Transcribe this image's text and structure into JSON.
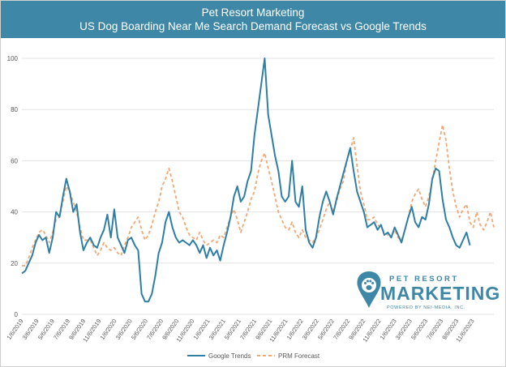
{
  "header": {
    "title_line1": "Pet Resort Marketing",
    "title_line2": "US Dog Boarding Near Me Search Demand Forecast vs Google Trends"
  },
  "logo": {
    "top_text": "PET RESORT",
    "main_text": "MARKETING",
    "sub_text": "POWERED BY NEI-MEDIA, INC."
  },
  "colors": {
    "header_bg": "#3e87a6",
    "trends": "#2e7fa5",
    "forecast": "#f2a775",
    "grid": "#e3e3e3"
  },
  "chart_data": {
    "type": "line",
    "title": "US Dog Boarding Near Me Search Demand Forecast vs Google Trends",
    "ylim": [
      0,
      100
    ],
    "yticks": [
      0,
      20,
      40,
      60,
      80,
      100
    ],
    "xlim_month_index": [
      0,
      58
    ],
    "x_tick_labels": [
      "1/6/2019",
      "3/6/2019",
      "5/6/2019",
      "7/6/2019",
      "9/6/2019",
      "11/6/2019",
      "1/6/2020",
      "3/6/2020",
      "5/6/2020",
      "7/6/2020",
      "9/6/2020",
      "11/6/2020",
      "1/6/2021",
      "3/6/2021",
      "5/6/2021",
      "7/6/2021",
      "9/6/2021",
      "11/6/2021",
      "1/6/2022",
      "3/6/2022",
      "5/6/2022",
      "7/6/2022",
      "9/6/2022",
      "11/6/2022",
      "1/6/2023",
      "3/6/2023",
      "5/6/2023",
      "7/6/2023",
      "9/6/2023",
      "11/6/2023"
    ],
    "grid": true,
    "legend_position": "bottom",
    "series": [
      {
        "name": "Google Trends",
        "style": "solid",
        "points": [
          [
            0,
            16
          ],
          [
            0.5,
            17
          ],
          [
            1,
            20
          ],
          [
            1.5,
            23
          ],
          [
            2,
            28
          ],
          [
            2.5,
            31
          ],
          [
            3,
            29
          ],
          [
            3.5,
            30
          ],
          [
            4,
            24
          ],
          [
            4.5,
            30
          ],
          [
            5,
            40
          ],
          [
            5.5,
            38
          ],
          [
            6,
            46
          ],
          [
            6.5,
            53
          ],
          [
            7,
            48
          ],
          [
            7.5,
            40
          ],
          [
            8,
            43
          ],
          [
            8.5,
            32
          ],
          [
            9,
            25
          ],
          [
            9.5,
            28
          ],
          [
            10,
            30
          ],
          [
            10.5,
            27
          ],
          [
            11,
            26
          ],
          [
            11.5,
            30
          ],
          [
            12,
            33
          ],
          [
            12.5,
            39
          ],
          [
            13,
            30
          ],
          [
            13.5,
            41
          ],
          [
            14,
            30
          ],
          [
            14.5,
            27
          ],
          [
            15,
            24
          ],
          [
            15.5,
            29
          ],
          [
            16,
            30
          ],
          [
            16.5,
            27
          ],
          [
            17,
            25
          ],
          [
            17.5,
            8
          ],
          [
            18,
            5
          ],
          [
            18.5,
            5
          ],
          [
            19,
            8
          ],
          [
            19.5,
            15
          ],
          [
            20,
            24
          ],
          [
            20.5,
            28
          ],
          [
            21,
            36
          ],
          [
            21.5,
            40
          ],
          [
            22,
            34
          ],
          [
            22.5,
            30
          ],
          [
            23,
            28
          ],
          [
            23.5,
            29
          ],
          [
            24,
            28
          ],
          [
            24.5,
            27
          ],
          [
            25,
            29
          ],
          [
            25.5,
            27
          ],
          [
            26,
            24
          ],
          [
            26.5,
            27
          ],
          [
            27,
            22
          ],
          [
            27.5,
            26
          ],
          [
            28,
            23
          ],
          [
            28.5,
            25
          ],
          [
            29,
            21
          ],
          [
            29.5,
            27
          ],
          [
            30,
            32
          ],
          [
            30.5,
            38
          ],
          [
            31,
            46
          ],
          [
            31.5,
            50
          ],
          [
            32,
            44
          ],
          [
            32.5,
            46
          ],
          [
            33,
            52
          ],
          [
            33.5,
            56
          ],
          [
            34,
            70
          ],
          [
            34.5,
            80
          ],
          [
            35,
            90
          ],
          [
            35.5,
            100
          ],
          [
            36,
            78
          ],
          [
            36.5,
            70
          ],
          [
            37,
            62
          ],
          [
            37.5,
            56
          ],
          [
            38,
            46
          ],
          [
            38.5,
            44
          ],
          [
            39,
            46
          ],
          [
            39.5,
            60
          ],
          [
            40,
            44
          ],
          [
            40.5,
            42
          ],
          [
            41,
            50
          ],
          [
            41.5,
            33
          ],
          [
            42,
            28
          ],
          [
            42.5,
            26
          ],
          [
            43,
            30
          ],
          [
            43.5,
            38
          ],
          [
            44,
            44
          ],
          [
            44.5,
            48
          ],
          [
            45,
            44
          ],
          [
            45.5,
            39
          ],
          [
            46,
            45
          ],
          [
            46.5,
            50
          ],
          [
            47,
            55
          ],
          [
            47.5,
            60
          ],
          [
            48,
            65
          ],
          [
            48.5,
            56
          ],
          [
            49,
            48
          ],
          [
            49.5,
            44
          ],
          [
            50,
            40
          ],
          [
            50.5,
            34
          ],
          [
            51,
            35
          ],
          [
            51.5,
            36
          ],
          [
            52,
            33
          ],
          [
            52.5,
            35
          ],
          [
            53,
            31
          ],
          [
            53.5,
            32
          ],
          [
            54,
            30
          ],
          [
            54.5,
            34
          ],
          [
            55,
            31
          ],
          [
            55.5,
            28
          ],
          [
            56,
            33
          ],
          [
            56.5,
            38
          ],
          [
            57,
            42
          ],
          [
            57.5,
            36
          ],
          [
            58,
            34
          ],
          [
            58.5,
            38
          ],
          [
            59,
            37
          ],
          [
            59.5,
            43
          ],
          [
            60,
            53
          ],
          [
            60.5,
            57
          ],
          [
            61,
            56
          ],
          [
            61.5,
            45
          ],
          [
            62,
            37
          ],
          [
            62.5,
            34
          ],
          [
            63,
            30
          ],
          [
            63.5,
            27
          ],
          [
            64,
            26
          ],
          [
            64.5,
            29
          ],
          [
            65,
            32
          ],
          [
            65.5,
            27
          ]
        ]
      },
      {
        "name": "PRM Forecast",
        "style": "dashed",
        "points": [
          [
            0,
            19
          ],
          [
            0.5,
            19
          ],
          [
            1,
            22
          ],
          [
            1.5,
            26
          ],
          [
            2,
            29
          ],
          [
            2.5,
            32
          ],
          [
            3,
            33
          ],
          [
            3.5,
            31
          ],
          [
            4,
            28
          ],
          [
            4.5,
            32
          ],
          [
            5,
            37
          ],
          [
            5.5,
            38
          ],
          [
            6,
            44
          ],
          [
            6.5,
            50
          ],
          [
            7,
            48
          ],
          [
            7.5,
            44
          ],
          [
            8,
            40
          ],
          [
            8.5,
            34
          ],
          [
            9,
            29
          ],
          [
            9.5,
            29
          ],
          [
            10,
            29
          ],
          [
            10.5,
            26
          ],
          [
            11,
            23
          ],
          [
            11.5,
            25
          ],
          [
            12,
            28
          ],
          [
            12.5,
            26
          ],
          [
            13,
            25
          ],
          [
            13.5,
            26
          ],
          [
            14,
            24
          ],
          [
            14.5,
            23
          ],
          [
            15,
            27
          ],
          [
            15.5,
            30
          ],
          [
            16,
            34
          ],
          [
            16.5,
            36
          ],
          [
            17,
            38
          ],
          [
            17.5,
            33
          ],
          [
            18,
            29
          ],
          [
            18.5,
            31
          ],
          [
            19,
            35
          ],
          [
            19.5,
            40
          ],
          [
            20,
            44
          ],
          [
            20.5,
            50
          ],
          [
            21,
            53
          ],
          [
            21.5,
            57
          ],
          [
            22,
            52
          ],
          [
            22.5,
            46
          ],
          [
            23,
            40
          ],
          [
            23.5,
            38
          ],
          [
            24,
            34
          ],
          [
            24.5,
            31
          ],
          [
            25,
            30
          ],
          [
            25.5,
            29
          ],
          [
            26,
            32
          ],
          [
            26.5,
            29
          ],
          [
            27,
            27
          ],
          [
            27.5,
            28
          ],
          [
            28,
            29
          ],
          [
            28.5,
            28
          ],
          [
            29,
            31
          ],
          [
            29.5,
            30
          ],
          [
            30,
            34
          ],
          [
            30.5,
            38
          ],
          [
            31,
            41
          ],
          [
            31.5,
            37
          ],
          [
            32,
            32
          ],
          [
            32.5,
            36
          ],
          [
            33,
            40
          ],
          [
            33.5,
            45
          ],
          [
            34,
            48
          ],
          [
            34.5,
            55
          ],
          [
            35,
            60
          ],
          [
            35.5,
            63
          ],
          [
            36,
            57
          ],
          [
            36.5,
            52
          ],
          [
            37,
            46
          ],
          [
            37.5,
            40
          ],
          [
            38,
            37
          ],
          [
            38.5,
            34
          ],
          [
            39,
            33
          ],
          [
            39.5,
            36
          ],
          [
            40,
            32
          ],
          [
            40.5,
            30
          ],
          [
            41,
            33
          ],
          [
            41.5,
            30
          ],
          [
            42,
            29
          ],
          [
            42.5,
            28
          ],
          [
            43,
            30
          ],
          [
            43.5,
            33
          ],
          [
            44,
            37
          ],
          [
            44.5,
            41
          ],
          [
            45,
            44
          ],
          [
            45.5,
            40
          ],
          [
            46,
            44
          ],
          [
            46.5,
            49
          ],
          [
            47,
            52
          ],
          [
            47.5,
            60
          ],
          [
            48,
            64
          ],
          [
            48.5,
            69
          ],
          [
            49,
            58
          ],
          [
            49.5,
            48
          ],
          [
            50,
            43
          ],
          [
            50.5,
            37
          ],
          [
            51,
            37
          ],
          [
            51.5,
            38
          ],
          [
            52,
            35
          ],
          [
            52.5,
            34
          ],
          [
            53,
            32
          ],
          [
            53.5,
            31
          ],
          [
            54,
            30
          ],
          [
            54.5,
            33
          ],
          [
            55,
            30
          ],
          [
            55.5,
            29
          ],
          [
            56,
            33
          ],
          [
            56.5,
            38
          ],
          [
            57,
            44
          ],
          [
            57.5,
            47
          ],
          [
            58,
            49
          ],
          [
            58.5,
            45
          ],
          [
            59,
            42
          ],
          [
            59.5,
            46
          ],
          [
            60,
            52
          ],
          [
            60.5,
            60
          ],
          [
            61,
            67
          ],
          [
            61.5,
            74
          ],
          [
            62,
            68
          ],
          [
            62.5,
            57
          ],
          [
            63,
            48
          ],
          [
            63.5,
            42
          ],
          [
            64,
            38
          ],
          [
            64.5,
            41
          ],
          [
            65,
            43
          ],
          [
            65.5,
            36
          ],
          [
            66,
            34
          ],
          [
            66.5,
            40
          ],
          [
            67,
            35
          ],
          [
            67.5,
            33
          ],
          [
            68,
            36
          ],
          [
            68.5,
            40
          ],
          [
            69,
            34
          ]
        ]
      }
    ]
  }
}
